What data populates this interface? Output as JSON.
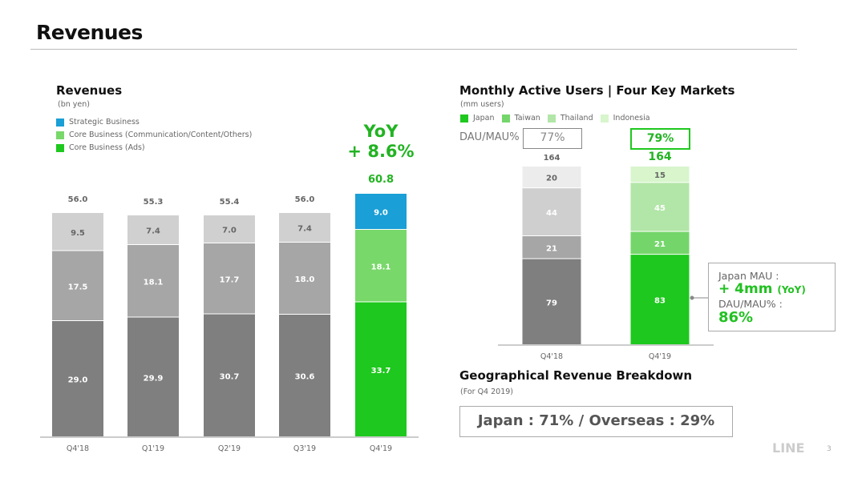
{
  "page_title": "Revenues",
  "colors": {
    "green": "#1ec81e",
    "accent_text": "#22b322",
    "blue": "#1a9fd6"
  },
  "chart_data": [
    {
      "type": "bar",
      "stacked": true,
      "title": "Revenues",
      "subtitle": "(bn yen)",
      "categories": [
        "Q4'18",
        "Q1'19",
        "Q2'19",
        "Q3'19",
        "Q4'19"
      ],
      "series": [
        {
          "name": "Core Business (Ads)",
          "values": [
            29.0,
            29.9,
            30.7,
            30.6,
            33.7
          ],
          "color": "#1ec81e",
          "gray": "#7f7f7f"
        },
        {
          "name": "Core Business (Communication/Content/Others)",
          "values": [
            17.5,
            18.1,
            17.7,
            18.0,
            18.1
          ],
          "color": "#78d86a",
          "gray": "#a6a6a6"
        },
        {
          "name": "Strategic Business",
          "values": [
            9.5,
            7.4,
            7.0,
            7.4,
            9.0
          ],
          "color": "#1a9fd6",
          "gray": "#d0d0d0"
        }
      ],
      "totals": [
        "56.0",
        "55.3",
        "55.4",
        "56.0",
        "60.8"
      ],
      "legend_order": [
        "Strategic Business",
        "Core Business (Communication/Content/Others)",
        "Core Business (Ads)"
      ],
      "highlight_category": "Q4'19",
      "annotation": {
        "line1": "YoY",
        "line2": "+ 8.6%"
      },
      "legend": "top-left",
      "grid": false
    },
    {
      "type": "bar",
      "stacked": true,
      "title": "Monthly Active Users | Four Key Markets",
      "subtitle": "(mm users)",
      "categories": [
        "Q4'18",
        "Q4'19"
      ],
      "series": [
        {
          "name": "Japan",
          "values": [
            79,
            83
          ],
          "color": "#1ec81e",
          "gray": "#7f7f7f"
        },
        {
          "name": "Taiwan",
          "values": [
            21,
            21
          ],
          "color": "#74d66a",
          "gray": "#a6a6a6"
        },
        {
          "name": "Thailand",
          "values": [
            44,
            45
          ],
          "color": "#b2e6a8",
          "gray": "#cfcfcf"
        },
        {
          "name": "Indonesia",
          "values": [
            20,
            15
          ],
          "color": "#d8f5cc",
          "gray": "#ececec"
        }
      ],
      "totals": [
        "164",
        "164"
      ],
      "dau_mau_label": "DAU/MAU%",
      "dau_mau": [
        "77%",
        "79%"
      ],
      "callout": {
        "line1": "Japan MAU :",
        "line2": "+ 4mm",
        "line2_suffix": "(YoY)",
        "line3": "DAU/MAU% :",
        "line4": "86%"
      },
      "legend": "top-left",
      "grid": false
    }
  ],
  "geo": {
    "title": "Geographical Revenue Breakdown",
    "subtitle": "(For Q4 2019)",
    "text": "Japan : 71% / Overseas : 29%"
  },
  "footer": {
    "logo": "LINE",
    "page": "3"
  }
}
